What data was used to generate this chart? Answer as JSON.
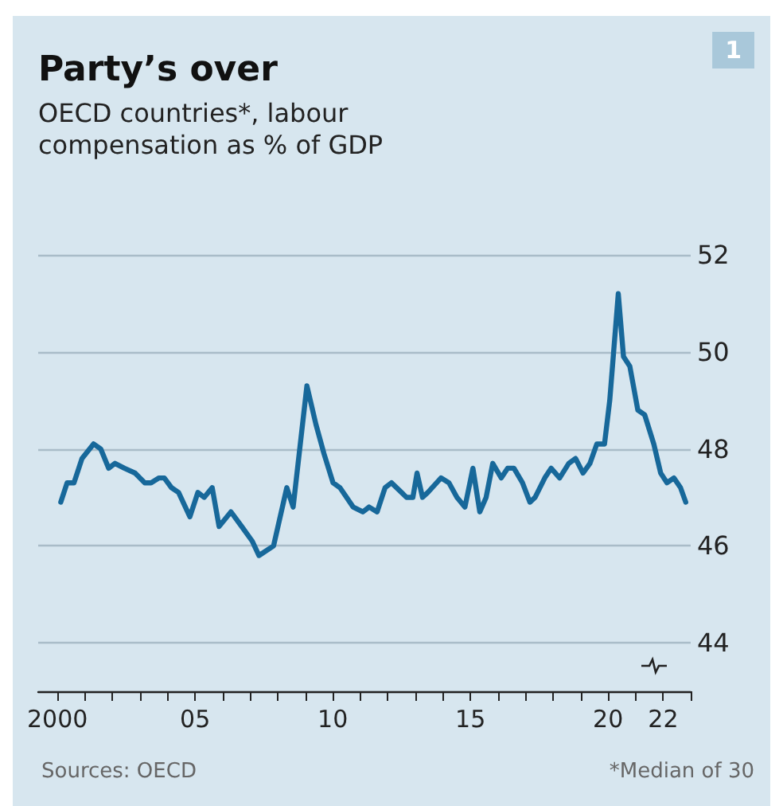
{
  "chart_data": {
    "type": "line",
    "title": "Party’s over",
    "subtitle": "OECD countries*, labour compensation as % of GDP",
    "annotations": [
      "Sources: OECD",
      "*Median of 30",
      "1"
    ],
    "series": [
      {
        "color": "#17689a",
        "x": [
          2000.12,
          2000.35,
          2000.6,
          2000.89,
          2001.31,
          2001.57,
          2001.86,
          2002.09,
          2002.43,
          2002.82,
          2003.17,
          2003.4,
          2003.69,
          2003.88,
          2004.14,
          2004.4,
          2004.81,
          2005.1,
          2005.33,
          2005.62,
          2005.87,
          2006.3,
          2006.69,
          2007.07,
          2007.32,
          2007.85,
          2008.33,
          2008.56,
          2009.06,
          2009.39,
          2009.68,
          2010.01,
          2010.26,
          2010.74,
          2011.09,
          2011.32,
          2011.61,
          2011.9,
          2012.13,
          2012.68,
          2012.91,
          2013.06,
          2013.26,
          2013.45,
          2013.93,
          2014.22,
          2014.51,
          2014.8,
          2015.09,
          2015.34,
          2015.57,
          2015.81,
          2016.12,
          2016.35,
          2016.58,
          2016.89,
          2017.16,
          2017.35,
          2017.7,
          2017.93,
          2018.24,
          2018.57,
          2018.82,
          2019.09,
          2019.34,
          2019.59,
          2019.87,
          2020.06,
          2020.37,
          2020.56,
          2020.79,
          2021.08,
          2021.33,
          2021.66,
          2021.91,
          2022.14,
          2022.39,
          2022.63,
          2022.82
        ],
        "values": [
          46.9,
          47.3,
          47.3,
          47.8,
          48.1,
          48.0,
          47.6,
          47.7,
          47.6,
          47.5,
          47.3,
          47.3,
          47.4,
          47.4,
          47.2,
          47.1,
          46.6,
          47.1,
          47.0,
          47.2,
          46.4,
          46.7,
          46.4,
          46.1,
          45.8,
          46.0,
          47.2,
          46.8,
          49.3,
          48.5,
          47.9,
          47.3,
          47.2,
          46.8,
          46.7,
          46.8,
          46.7,
          47.2,
          47.3,
          47.0,
          47.0,
          47.5,
          47.0,
          47.1,
          47.4,
          47.3,
          47.0,
          46.8,
          47.6,
          46.7,
          47.0,
          47.7,
          47.4,
          47.6,
          47.6,
          47.3,
          46.9,
          47.0,
          47.4,
          47.6,
          47.4,
          47.7,
          47.8,
          47.5,
          47.7,
          48.1,
          48.1,
          49.0,
          51.2,
          49.9,
          49.7,
          48.8,
          48.7,
          48.1,
          47.5,
          47.3,
          47.4,
          47.2,
          46.9
        ]
      }
    ],
    "xlim": [
      1999.3,
      2023
    ],
    "xticks": [
      {
        "value": 2000,
        "label": "2000"
      },
      {
        "value": 2001,
        "label": null
      },
      {
        "value": 2002,
        "label": null
      },
      {
        "value": 2003,
        "label": null
      },
      {
        "value": 2004,
        "label": null
      },
      {
        "value": 2005,
        "label": "05"
      },
      {
        "value": 2006,
        "label": null
      },
      {
        "value": 2007,
        "label": null
      },
      {
        "value": 2008,
        "label": null
      },
      {
        "value": 2009,
        "label": null
      },
      {
        "value": 2010,
        "label": "10"
      },
      {
        "value": 2011,
        "label": null
      },
      {
        "value": 2012,
        "label": null
      },
      {
        "value": 2013,
        "label": null
      },
      {
        "value": 2014,
        "label": null
      },
      {
        "value": 2015,
        "label": "15"
      },
      {
        "value": 2016,
        "label": null
      },
      {
        "value": 2017,
        "label": null
      },
      {
        "value": 2018,
        "label": null
      },
      {
        "value": 2019,
        "label": null
      },
      {
        "value": 2020,
        "label": "20"
      },
      {
        "value": 2021,
        "label": null
      },
      {
        "value": 2022,
        "label": "22"
      },
      {
        "value": 2023,
        "label": null
      }
    ],
    "ylim": [
      43,
      52
    ],
    "yticks": [
      44,
      46,
      48,
      50,
      52
    ],
    "grid": "y",
    "marker": "none",
    "line_style": "solid"
  }
}
